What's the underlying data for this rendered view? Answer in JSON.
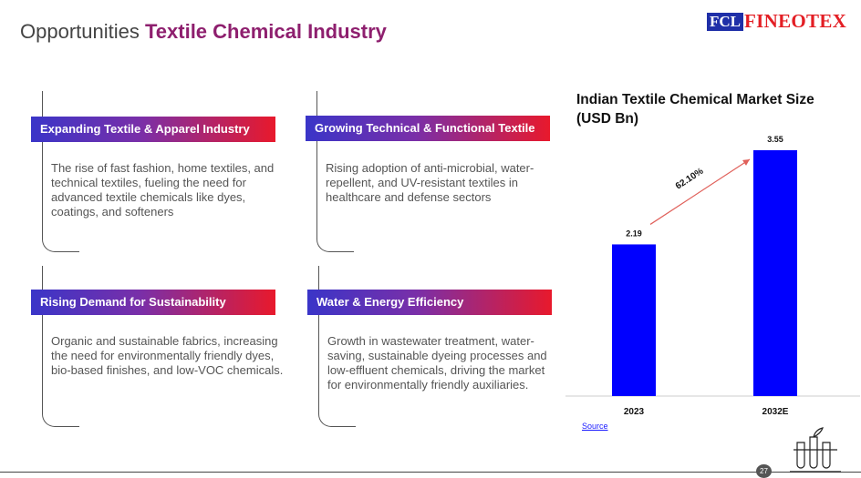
{
  "header": {
    "title_prefix": "Opportunities",
    "title_accent": "Textile Chemical Industry",
    "logo_mark": "FCL",
    "logo_name": "FINEOTEX"
  },
  "cards": [
    {
      "title": "Expanding Textile & Apparel Industry",
      "text": "The rise of fast fashion, home textiles, and technical textiles, fueling the need for advanced textile chemicals like dyes, coatings, and softeners"
    },
    {
      "title": "Growing Technical & Functional Textile",
      "text": "Rising adoption of anti-microbial, water-repellent, and UV-resistant textiles in healthcare and defense sectors"
    },
    {
      "title": "Rising Demand for Sustainability",
      "text": "Organic and sustainable fabrics, increasing the need for environmentally friendly dyes, bio-based finishes, and low-VOC chemicals."
    },
    {
      "title": "Water & Energy Efficiency",
      "text": "Growth in wastewater treatment, water-saving, sustainable dyeing processes and low-effluent chemicals, driving the market for environmentally friendly auxiliaries."
    }
  ],
  "chart_data": {
    "type": "bar",
    "title": "Indian Textile Chemical Market Size (USD Bn)",
    "categories": [
      "2023",
      "2032E"
    ],
    "values": [
      2.19,
      3.55
    ],
    "value_labels": [
      "2.19",
      "3.55"
    ],
    "growth_label": "62.10%",
    "ylim": [
      0,
      3.55
    ],
    "xlabel": "",
    "ylabel": "",
    "bar_color": "#0000ff"
  },
  "source_label": "Source",
  "page_number": "27"
}
